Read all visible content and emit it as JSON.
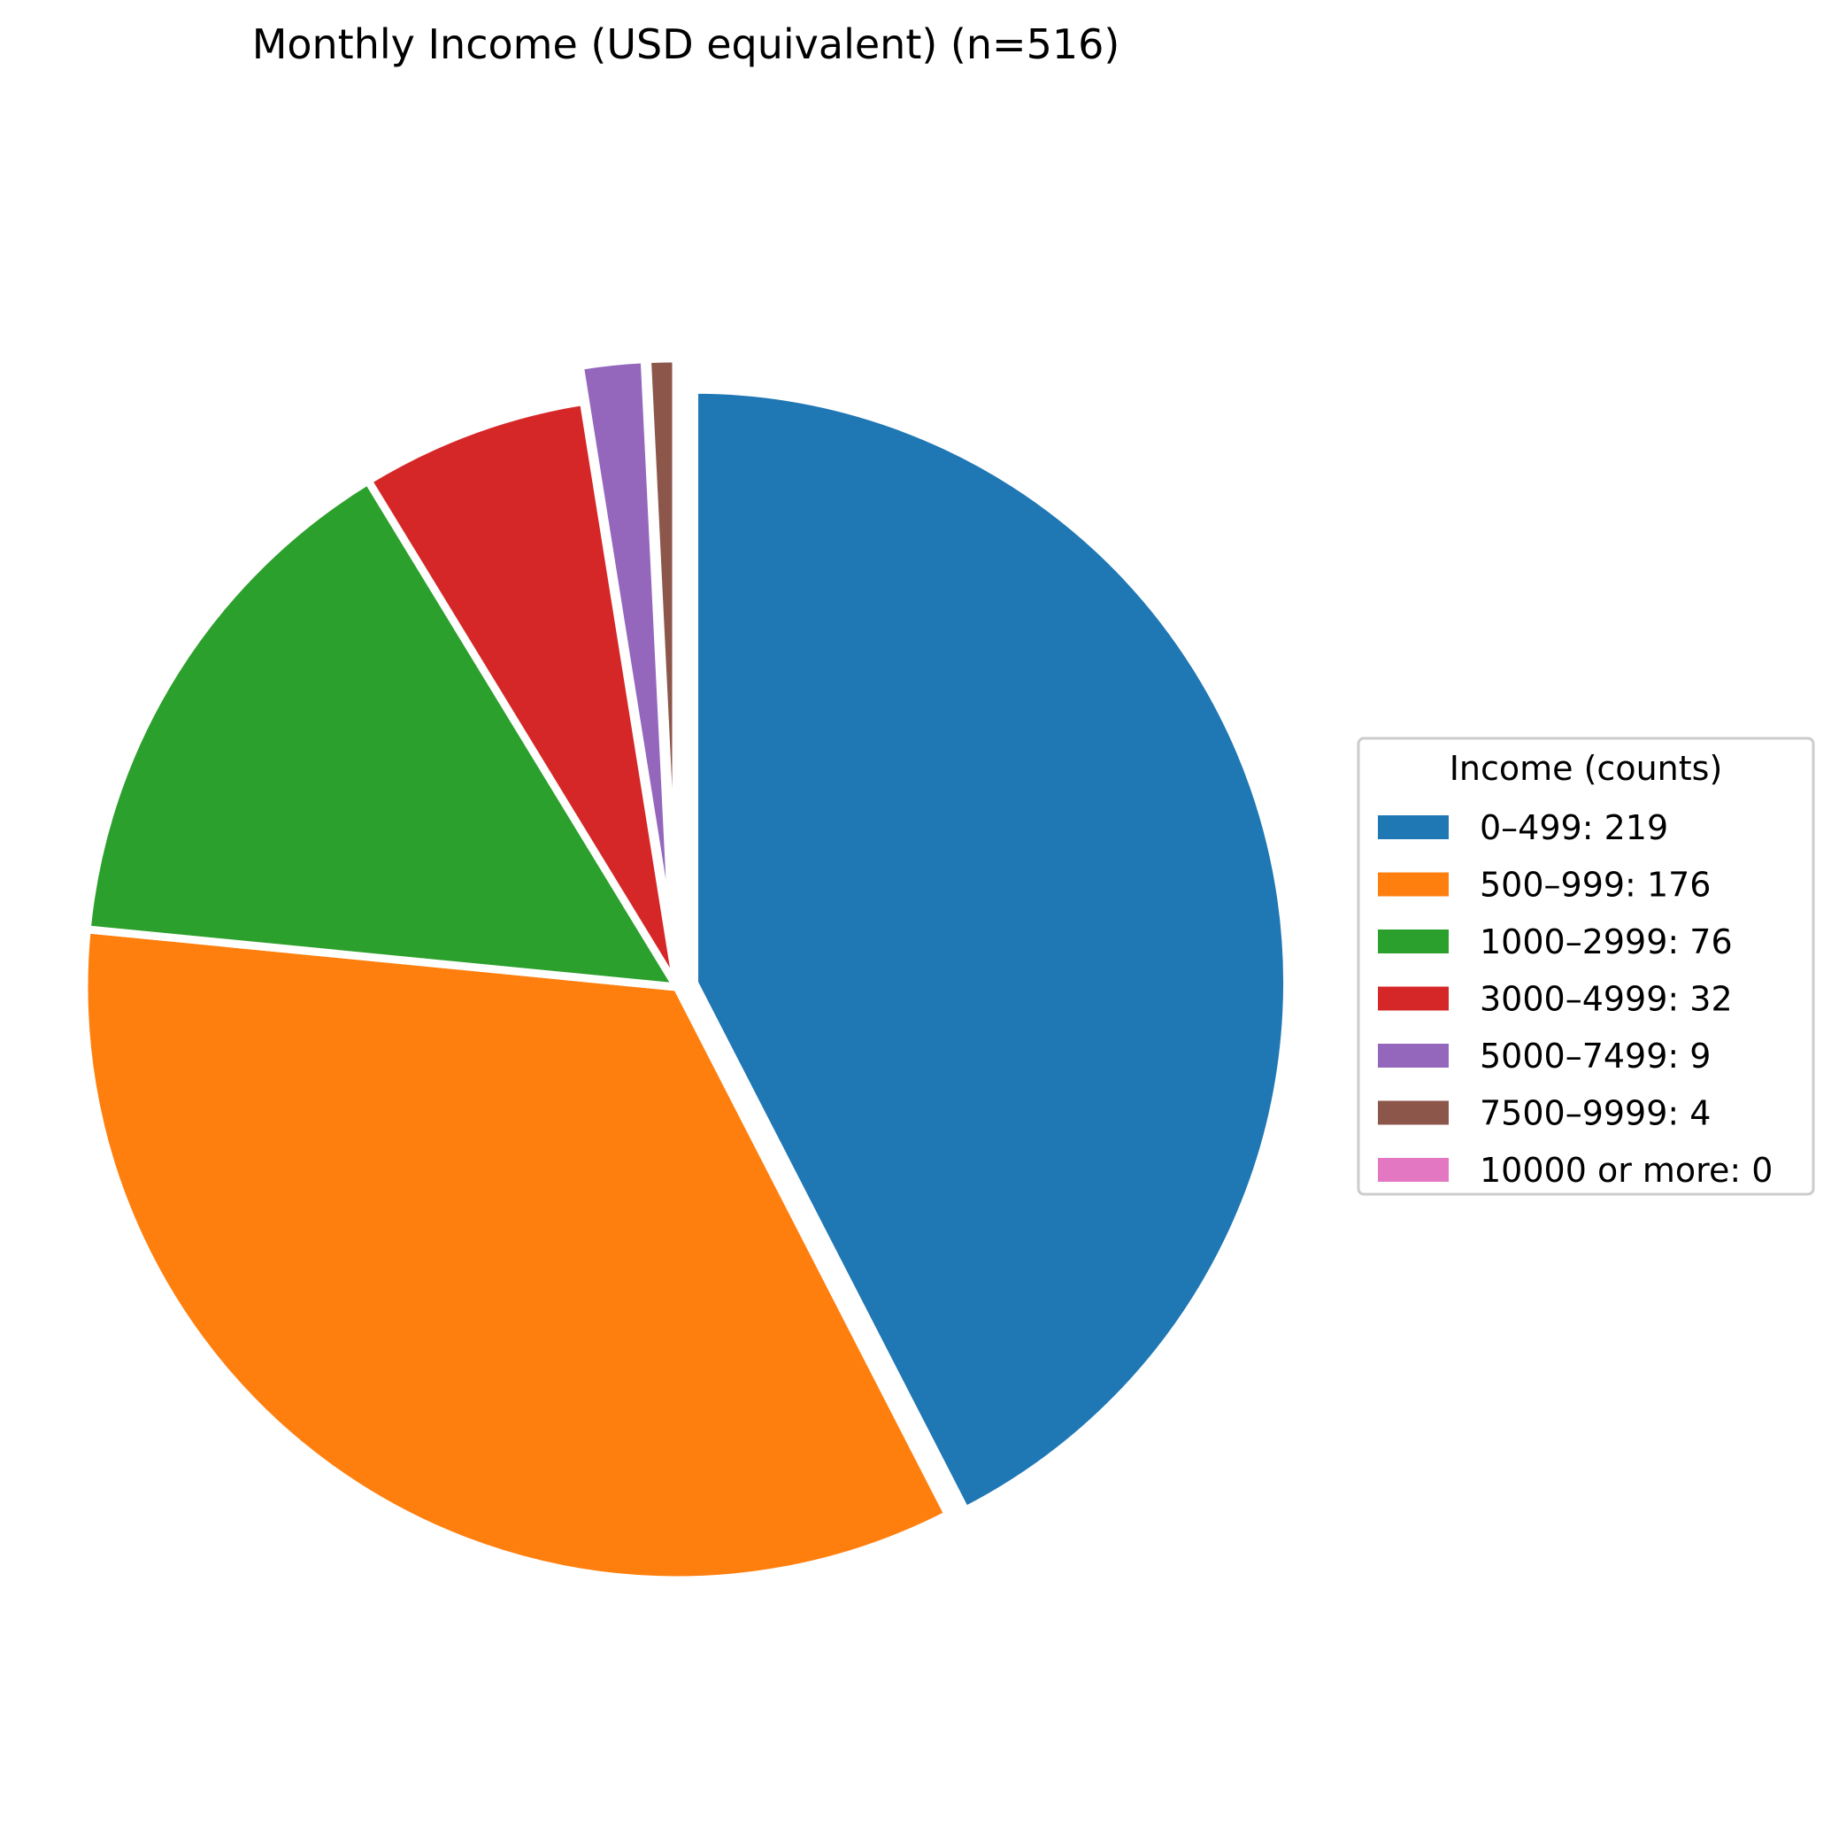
{
  "chart_data": {
    "type": "pie",
    "title": "Monthly Income (USD equivalent) (n=516)",
    "legend": {
      "title": "Income (counts)",
      "placement": "center-right"
    },
    "categories": [
      "0–499",
      "500–999",
      "1000–2999",
      "3000–4999",
      "5000–7499",
      "7500–9999",
      "10000 or more"
    ],
    "values": [
      219,
      176,
      76,
      32,
      9,
      4,
      0
    ],
    "legend_labels": [
      "0–499: 219",
      "500–999: 176",
      "1000–2999: 76",
      "3000–4999: 32",
      "5000–7499: 9",
      "7500–9999: 4",
      "10000 or more: 0"
    ],
    "colors": [
      "#1f77b4",
      "#ff7f0e",
      "#2ca02c",
      "#d62728",
      "#9467bd",
      "#8c564b",
      "#e377c2"
    ],
    "explode": [
      0.03,
      0,
      0,
      0,
      0.06,
      0.06,
      0.06
    ],
    "start_angle_deg": 90,
    "direction": "clockwise",
    "wedge_edge_color": "#ffffff"
  }
}
